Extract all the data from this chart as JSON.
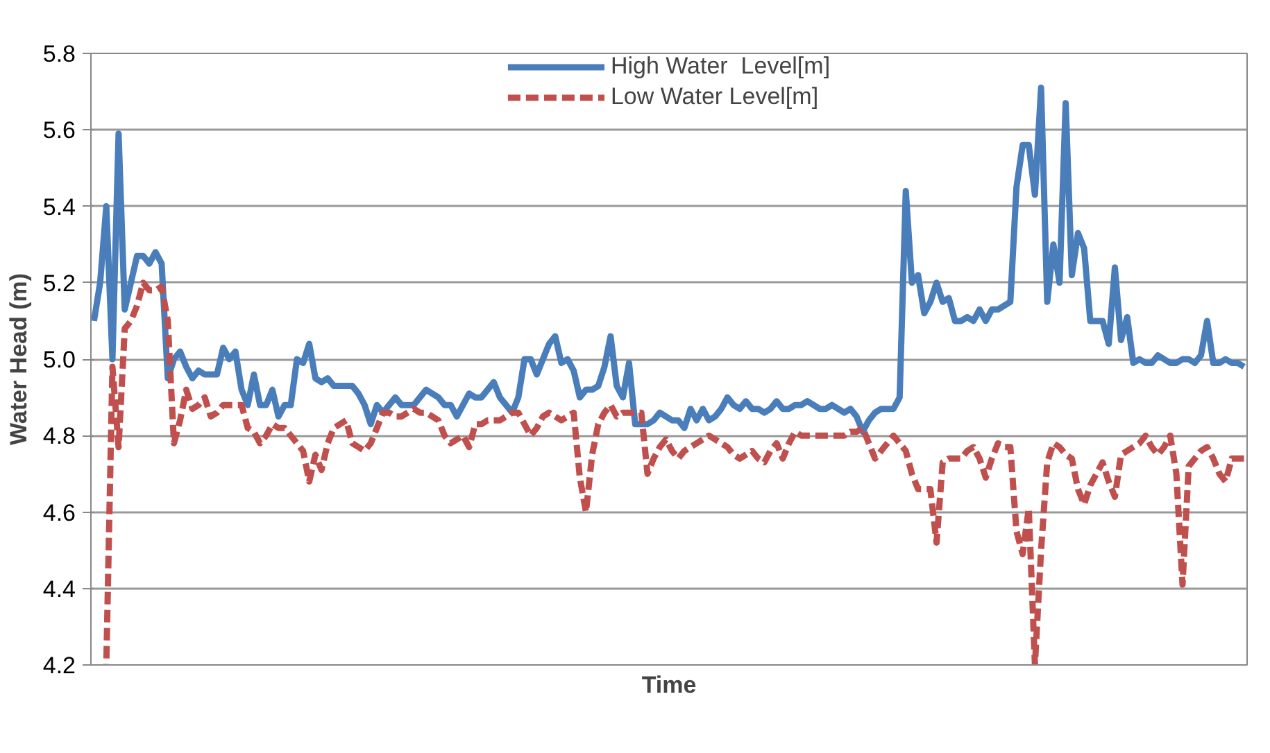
{
  "chart_data": {
    "type": "line",
    "xlabel": "Time",
    "ylabel": "Water Head (m)",
    "ylim": [
      4.2,
      5.8
    ],
    "yticks": [
      {
        "value": 4.2,
        "label": "4.2"
      },
      {
        "value": 4.4,
        "label": "4.4"
      },
      {
        "value": 4.6,
        "label": "4.6"
      },
      {
        "value": 4.8,
        "label": "4.8"
      },
      {
        "value": 5.0,
        "label": "5.0"
      },
      {
        "value": 5.2,
        "label": "5.2"
      },
      {
        "value": 5.4,
        "label": "5.4"
      },
      {
        "value": 5.6,
        "label": "5.6"
      },
      {
        "value": 5.8,
        "label": "5.8"
      }
    ],
    "tick_labels": "y",
    "grid": "y",
    "legend": "top",
    "categories": [
      null,
      null,
      null,
      null,
      null,
      null,
      null,
      null,
      null,
      null,
      null,
      null,
      null,
      null,
      null,
      null,
      null,
      null,
      null,
      null,
      null,
      null,
      null,
      null,
      null,
      null,
      null,
      null,
      null,
      null,
      null,
      null,
      null,
      null,
      null,
      null,
      null,
      null,
      null,
      null,
      null,
      null,
      null,
      null,
      null,
      null,
      null,
      null,
      null,
      null,
      null,
      null,
      null,
      null,
      null,
      null,
      null,
      null,
      null,
      null,
      null,
      null,
      null,
      null,
      null,
      null,
      null,
      null,
      null,
      null,
      null,
      null,
      null,
      null,
      null,
      null,
      null,
      null,
      null,
      null,
      null,
      null,
      null,
      null,
      null,
      null,
      null,
      null,
      null,
      null,
      null,
      null,
      null,
      null,
      null,
      null,
      null,
      null,
      null,
      null,
      null,
      null,
      null,
      null,
      null,
      null,
      null,
      null,
      null,
      null,
      null,
      null,
      null,
      null,
      null,
      null,
      null,
      null,
      null,
      null,
      null,
      null,
      null,
      null,
      null,
      null,
      null,
      null,
      null,
      null,
      null,
      null,
      null,
      null,
      null,
      null,
      null,
      null,
      null,
      null,
      null,
      null,
      null,
      null,
      null,
      null,
      null,
      null,
      null,
      null,
      null,
      null,
      null,
      null,
      null,
      null,
      null,
      null,
      null,
      null,
      null,
      null,
      null,
      null,
      null,
      null,
      null,
      null,
      null,
      null,
      null,
      null,
      null,
      null,
      null,
      null,
      null,
      null,
      null,
      null,
      null,
      null,
      null,
      null,
      null,
      null,
      null,
      null
    ],
    "series": [
      {
        "name": "High Water  Level[m]",
        "color": "#4a7ebb",
        "line_style": "solid",
        "values": [
          5.1,
          5.2,
          5.4,
          5.0,
          5.59,
          5.13,
          5.2,
          5.27,
          5.27,
          5.25,
          5.28,
          5.25,
          4.95,
          5.0,
          5.02,
          4.98,
          4.95,
          4.97,
          4.96,
          4.96,
          4.96,
          5.03,
          5.0,
          5.02,
          4.92,
          4.88,
          4.96,
          4.88,
          4.88,
          4.92,
          4.85,
          4.88,
          4.88,
          5.0,
          4.99,
          5.04,
          4.95,
          4.94,
          4.95,
          4.93,
          4.93,
          4.93,
          4.93,
          4.91,
          4.88,
          4.83,
          4.88,
          4.86,
          4.88,
          4.9,
          4.88,
          4.88,
          4.88,
          4.9,
          4.92,
          4.91,
          4.9,
          4.88,
          4.88,
          4.85,
          4.88,
          4.91,
          4.9,
          4.9,
          4.92,
          4.94,
          4.9,
          4.88,
          4.86,
          4.9,
          5.0,
          5.0,
          4.96,
          5.0,
          5.04,
          5.06,
          4.99,
          5.0,
          4.97,
          4.9,
          4.92,
          4.92,
          4.93,
          4.98,
          5.06,
          4.93,
          4.9,
          4.99,
          4.83,
          4.83,
          4.83,
          4.84,
          4.86,
          4.85,
          4.84,
          4.84,
          4.82,
          4.87,
          4.84,
          4.87,
          4.84,
          4.85,
          4.87,
          4.9,
          4.88,
          4.87,
          4.89,
          4.87,
          4.87,
          4.86,
          4.87,
          4.89,
          4.87,
          4.87,
          4.88,
          4.88,
          4.89,
          4.88,
          4.87,
          4.87,
          4.88,
          4.87,
          4.86,
          4.87,
          4.85,
          4.81,
          4.84,
          4.86,
          4.87,
          4.87,
          4.87,
          4.9,
          5.44,
          5.2,
          5.22,
          5.12,
          5.15,
          5.2,
          5.15,
          5.16,
          5.1,
          5.1,
          5.11,
          5.1,
          5.13,
          5.1,
          5.13,
          5.13,
          5.14,
          5.15,
          5.45,
          5.56,
          5.56,
          5.43,
          5.71,
          5.15,
          5.3,
          5.2,
          5.67,
          5.22,
          5.33,
          5.29,
          5.1,
          5.1,
          5.1,
          5.04,
          5.24,
          5.05,
          5.11,
          4.99,
          5.0,
          4.99,
          4.99,
          5.01,
          5.0,
          4.99,
          4.99,
          5.0,
          5.0,
          4.99,
          5.01,
          5.1,
          4.99,
          4.99,
          5.0,
          4.99,
          4.99,
          4.98
        ]
      },
      {
        "name": "Low Water Level[m]",
        "color": "#c0504d",
        "line_style": "dashed",
        "values": [
          null,
          null,
          4.2,
          4.98,
          4.77,
          5.08,
          5.1,
          5.14,
          5.2,
          5.18,
          5.18,
          5.19,
          5.1,
          4.78,
          4.84,
          4.92,
          4.87,
          4.88,
          4.9,
          4.85,
          4.86,
          4.88,
          4.88,
          4.88,
          4.88,
          4.82,
          4.81,
          4.78,
          4.8,
          4.83,
          4.82,
          4.82,
          4.8,
          4.78,
          4.76,
          4.68,
          4.75,
          4.71,
          4.78,
          4.82,
          4.83,
          4.84,
          4.78,
          4.77,
          4.76,
          4.78,
          4.82,
          4.86,
          4.86,
          4.85,
          4.85,
          4.86,
          4.87,
          4.86,
          4.86,
          4.85,
          4.84,
          4.8,
          4.78,
          4.79,
          4.8,
          4.77,
          4.83,
          4.83,
          4.84,
          4.84,
          4.84,
          4.85,
          4.86,
          4.86,
          4.83,
          4.8,
          4.82,
          4.85,
          4.86,
          4.85,
          4.84,
          4.85,
          4.86,
          4.69,
          4.6,
          4.75,
          4.83,
          4.86,
          4.88,
          4.85,
          4.86,
          4.86,
          4.86,
          4.86,
          4.7,
          4.74,
          4.77,
          4.79,
          4.76,
          4.74,
          4.76,
          4.77,
          4.78,
          4.79,
          4.8,
          4.79,
          4.78,
          4.77,
          4.75,
          4.74,
          4.75,
          4.76,
          4.74,
          4.73,
          4.76,
          4.78,
          4.74,
          4.78,
          4.81,
          4.8,
          4.8,
          4.8,
          4.8,
          4.8,
          4.8,
          4.8,
          4.8,
          4.81,
          4.81,
          4.82,
          4.78,
          4.74,
          4.76,
          4.78,
          4.8,
          4.78,
          4.76,
          4.7,
          4.66,
          4.66,
          4.66,
          4.52,
          4.73,
          4.74,
          4.74,
          4.74,
          4.76,
          4.77,
          4.74,
          4.69,
          4.74,
          4.78,
          4.77,
          4.77,
          4.55,
          4.49,
          4.61,
          4.2,
          4.5,
          4.73,
          4.78,
          4.77,
          4.75,
          4.74,
          4.66,
          4.62,
          4.67,
          4.7,
          4.73,
          4.68,
          4.64,
          4.75,
          4.76,
          4.77,
          4.78,
          4.8,
          4.77,
          4.75,
          4.77,
          4.8,
          4.7,
          4.41,
          4.72,
          4.74,
          4.76,
          4.77,
          4.74,
          4.7,
          4.68,
          4.74,
          4.74,
          4.74
        ]
      }
    ]
  }
}
